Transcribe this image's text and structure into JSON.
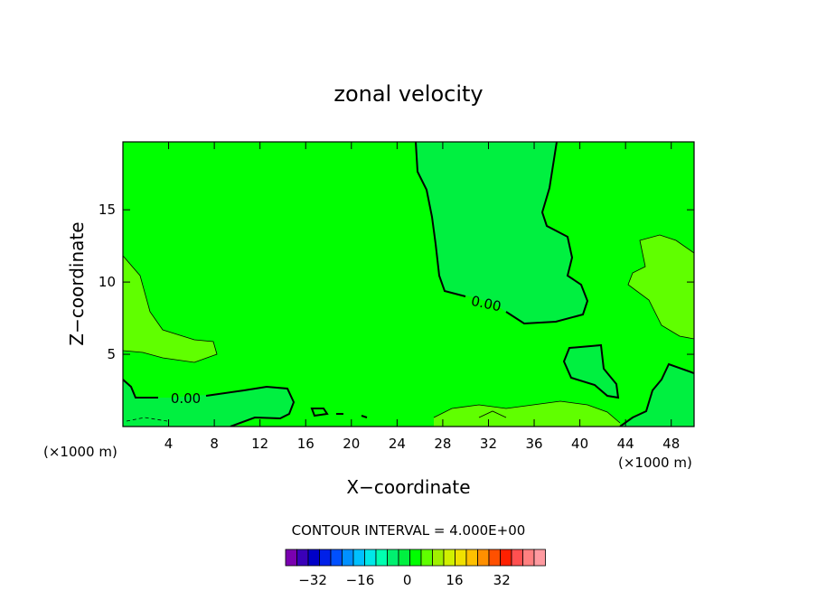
{
  "chart_data": {
    "type": "heatmap",
    "title": "zonal velocity",
    "xlabel": "X−coordinate",
    "ylabel": "Z−coordinate",
    "x_unit_left": "(×1000 m)",
    "x_unit_right": "(×1000 m)",
    "xlim": [
      0,
      50
    ],
    "ylim": [
      0,
      19.7
    ],
    "x_ticks": [
      4,
      8,
      12,
      16,
      20,
      24,
      28,
      32,
      36,
      40,
      44,
      48
    ],
    "y_ticks": [
      5,
      10,
      15
    ],
    "contour_interval_text": "CONTOUR INTERVAL = 4.000E+00",
    "contour_labels": [
      {
        "text": "0.00",
        "x": 5.5,
        "z": 1.95
      },
      {
        "text": "0.00",
        "x": 31.8,
        "z": 8.5
      }
    ],
    "colorbar": {
      "colors": [
        "#7a00b0",
        "#3a00b8",
        "#0000c8",
        "#0020e8",
        "#0050ff",
        "#0090ff",
        "#00c0ff",
        "#00e8e8",
        "#00ffb0",
        "#00f070",
        "#00f040",
        "#00ff00",
        "#60ff00",
        "#a0f000",
        "#d0f000",
        "#f0e000",
        "#ffc000",
        "#ff9000",
        "#ff5000",
        "#ff2000",
        "#ff5050",
        "#ff8080",
        "#ff9aa0"
      ],
      "tick_labels": [
        "−32",
        "−16",
        "0",
        "16",
        "32"
      ],
      "tick_values": [
        -32,
        -16,
        0,
        16,
        32
      ]
    },
    "fields": {
      "background_color": "#00ff00",
      "negative_color": "#00f040",
      "positive_color": "#60ff00"
    }
  }
}
